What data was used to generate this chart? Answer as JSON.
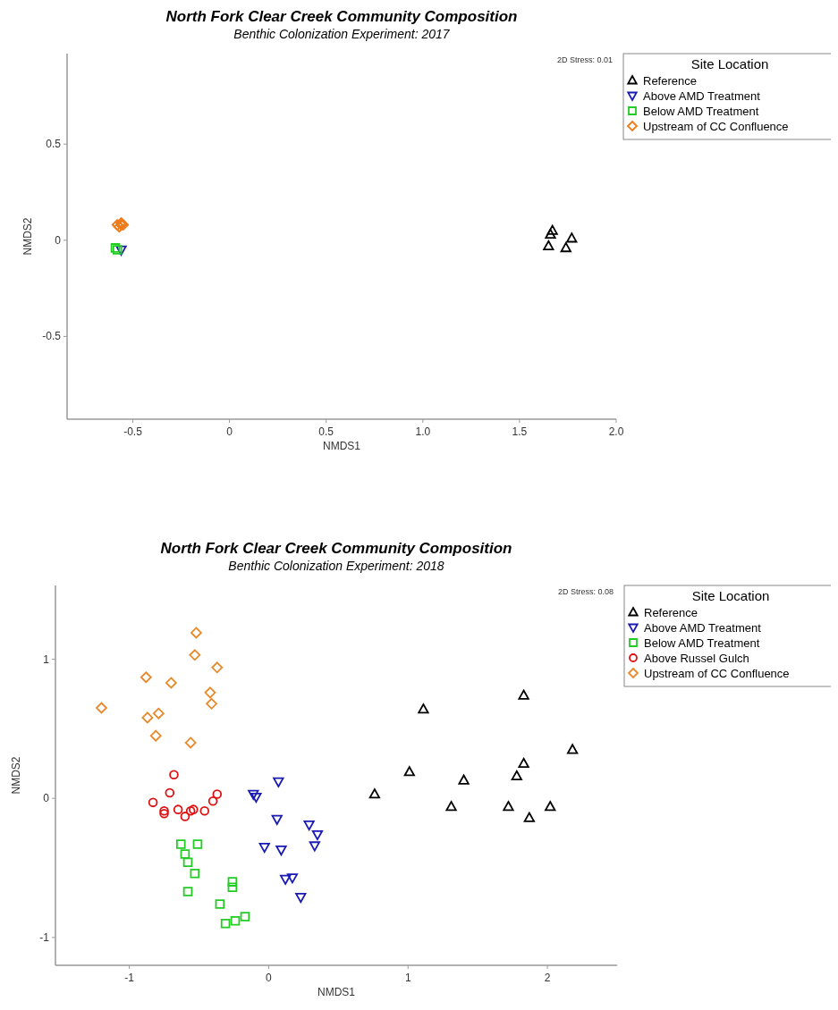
{
  "chart_data": [
    {
      "type": "scatter",
      "title": "North Fork Clear Creek Community Composition",
      "subtitle": "Benthic Colonization Experiment: 2017",
      "xlabel": "NMDS1",
      "ylabel": "NMDS2",
      "legend_title": "Site Location",
      "legend": "top right",
      "grid": false,
      "annotations": [
        "2D Stress: 0.01"
      ],
      "xlim": [
        -0.84,
        2.0
      ],
      "ylim": [
        -0.93,
        0.97
      ],
      "xticks": [
        -0.5,
        0,
        0.5,
        {
          "value": 1,
          "label": "1.0"
        },
        1.5,
        {
          "value": 2,
          "label": "2.0"
        }
      ],
      "yticks": [
        -0.5,
        0,
        0.5
      ],
      "series": [
        {
          "name": "Reference",
          "color": "#000000",
          "marker": "triangle",
          "x": [
            1.66,
            1.65,
            1.77,
            1.74,
            1.67
          ],
          "values": [
            0.03,
            -0.03,
            0.01,
            -0.04,
            0.05
          ]
        },
        {
          "name": "Above AMD Treatment",
          "color": "#1a1ab4",
          "marker": "triangle-down",
          "x": [
            -0.56
          ],
          "values": [
            -0.05
          ]
        },
        {
          "name": "Below AMD Treatment",
          "color": "#22cc22",
          "marker": "square",
          "x": [
            -0.59,
            -0.58
          ],
          "values": [
            -0.04,
            -0.05
          ]
        },
        {
          "name": "Upstream of CC Confluence",
          "color": "#ee7a1a",
          "marker": "diamond",
          "x": [
            -0.58,
            -0.56,
            -0.55,
            -0.57,
            -0.56
          ],
          "values": [
            0.08,
            0.09,
            0.08,
            0.07,
            0.08
          ]
        }
      ]
    },
    {
      "type": "scatter",
      "title": "North Fork Clear Creek Community Composition",
      "subtitle": "Benthic Colonization Experiment: 2018",
      "xlabel": "NMDS1",
      "ylabel": "NMDS2",
      "legend_title": "Site Location",
      "legend": "top right",
      "grid": false,
      "annotations": [
        "2D Stress: 0.08"
      ],
      "xlim": [
        -1.53,
        2.5
      ],
      "ylim": [
        -1.2,
        1.53
      ],
      "xticks": [
        -1,
        0,
        1,
        2
      ],
      "yticks": [
        -1,
        0,
        1
      ],
      "series": [
        {
          "name": "Reference",
          "color": "#000000",
          "marker": "triangle",
          "x": [
            1.83,
            1.11,
            2.18,
            1.83,
            1.78,
            1.01,
            1.4,
            0.76,
            1.31,
            1.72,
            2.02,
            1.87
          ],
          "values": [
            0.74,
            0.64,
            0.35,
            0.25,
            0.16,
            0.19,
            0.13,
            0.03,
            -0.06,
            -0.06,
            -0.06,
            -0.14
          ]
        },
        {
          "name": "Above AMD Treatment",
          "color": "#1a1ab4",
          "marker": "triangle-down",
          "x": [
            0.07,
            -0.11,
            -0.09,
            0.06,
            0.29,
            0.35,
            0.33,
            -0.03,
            0.09,
            0.12,
            0.17,
            0.23
          ],
          "values": [
            0.12,
            0.03,
            0.01,
            -0.15,
            -0.19,
            -0.26,
            -0.34,
            -0.35,
            -0.37,
            -0.58,
            -0.57,
            -0.71
          ]
        },
        {
          "name": "Below AMD Treatment",
          "color": "#22cc22",
          "marker": "square",
          "x": [
            -0.63,
            -0.51,
            -0.6,
            -0.58,
            -0.53,
            -0.58,
            -0.26,
            -0.26,
            -0.35,
            -0.31,
            -0.24,
            -0.17
          ],
          "values": [
            -0.33,
            -0.33,
            -0.4,
            -0.46,
            -0.54,
            -0.67,
            -0.6,
            -0.64,
            -0.76,
            -0.9,
            -0.88,
            -0.85
          ]
        },
        {
          "name": "Above Russel Gulch",
          "color": "#dd1111",
          "marker": "circle",
          "x": [
            -0.68,
            -0.71,
            -0.83,
            -0.75,
            -0.75,
            -0.65,
            -0.6,
            -0.56,
            -0.54,
            -0.46,
            -0.4,
            -0.37
          ],
          "values": [
            0.17,
            0.04,
            -0.03,
            -0.09,
            -0.11,
            -0.08,
            -0.13,
            -0.09,
            -0.08,
            -0.09,
            -0.02,
            0.03
          ]
        },
        {
          "name": "Upstream of CC Confluence",
          "color": "#e8892a",
          "marker": "diamond",
          "x": [
            -0.52,
            -0.53,
            -0.37,
            -0.88,
            -0.7,
            -0.42,
            -0.41,
            -1.2,
            -0.87,
            -0.79,
            -0.81,
            -0.56
          ],
          "values": [
            1.19,
            1.03,
            0.94,
            0.87,
            0.83,
            0.76,
            0.68,
            0.65,
            0.58,
            0.61,
            0.45,
            0.4
          ]
        }
      ]
    }
  ]
}
